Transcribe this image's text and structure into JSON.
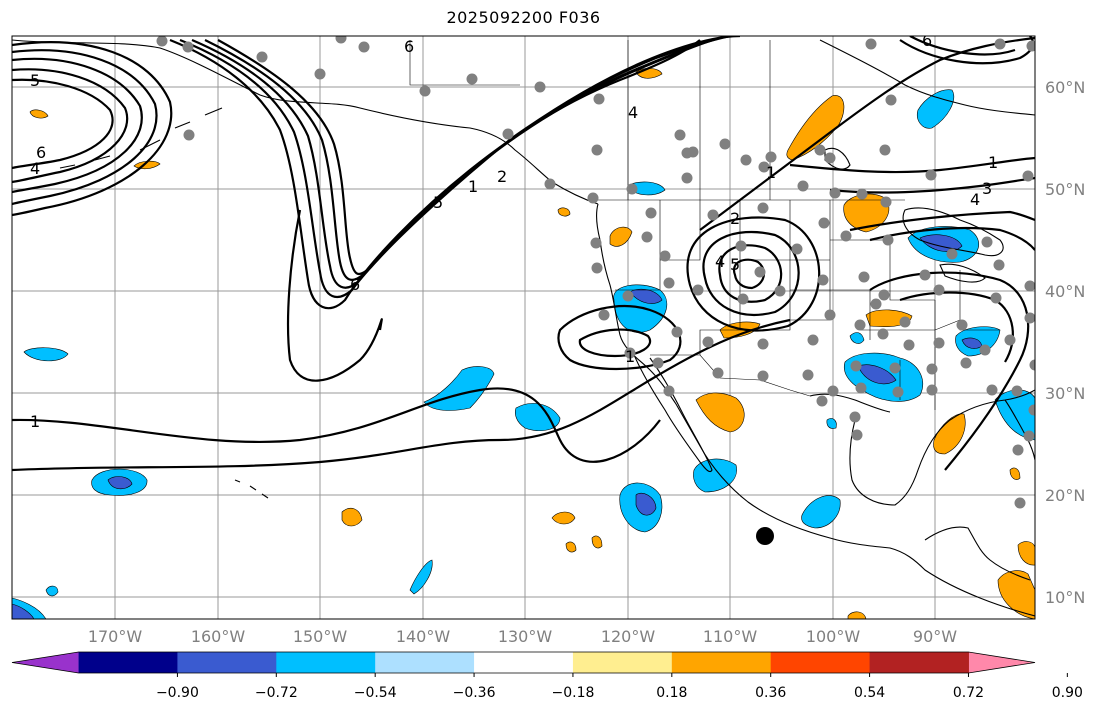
{
  "title": "2025092200 F036",
  "map": {
    "lon_labels": [
      "170°W",
      "160°W",
      "150°W",
      "140°W",
      "130°W",
      "120°W",
      "110°W",
      "100°W",
      "90°W"
    ],
    "lat_labels": [
      "60°N",
      "50°N",
      "40°N",
      "30°N",
      "20°N",
      "10°N"
    ]
  },
  "contour_labels": [
    "5",
    "6",
    "4",
    "1",
    "6",
    "5",
    "4",
    "2",
    "1",
    "4",
    "5",
    "1",
    "2",
    "1",
    "3",
    "4",
    "6",
    "1",
    "6"
  ],
  "colorbar": {
    "ticks": [
      "−0.90",
      "−0.72",
      "−0.54",
      "−0.36",
      "−0.18",
      "0.18",
      "0.36",
      "0.54",
      "0.72",
      "0.90"
    ],
    "colors": [
      "#9932CC",
      "#00008B",
      "#3A5BD0",
      "#00BFFF",
      "#ADE0FF",
      "#FFFFFF",
      "#FFEE90",
      "#FFA500",
      "#FF4500",
      "#B22222",
      "#FF88AA"
    ]
  }
}
